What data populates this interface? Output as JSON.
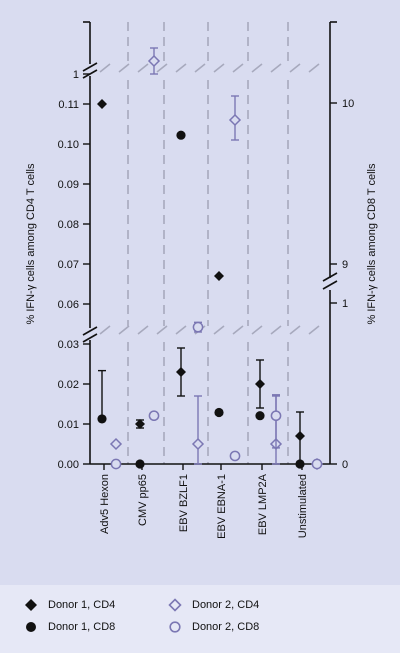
{
  "chart_data": {
    "type": "scatter",
    "categories": [
      "Adv5 Hexon",
      "CMV pp65",
      "EBV BZLF1",
      "EBV EBNA-1",
      "EBV LMP2A",
      "Unstimulated"
    ],
    "ylabel_left": "% IFN-γ cells among CD4 T cells",
    "ylabel_right": "% IFN-γ cells among CD8 T cells",
    "left_axis": {
      "segments": [
        {
          "range": [
            0,
            0.03
          ],
          "ticks": [
            0.0,
            0.01,
            0.02,
            0.03
          ],
          "tick_labels": [
            "0.00",
            "0.01",
            "0.02",
            "0.03"
          ]
        },
        {
          "range": [
            0.055,
            0.115
          ],
          "ticks": [
            0.06,
            0.07,
            0.08,
            0.09,
            0.1,
            0.11
          ],
          "tick_labels": [
            "0.06",
            "0.07",
            "0.08",
            "0.09",
            "0.10",
            "0.11"
          ]
        },
        {
          "range": [
            0.9,
            1.2
          ],
          "ticks": [
            1
          ],
          "tick_labels": [
            "1"
          ]
        }
      ]
    },
    "right_axis": {
      "segments": [
        {
          "range": [
            0,
            1
          ],
          "ticks": [
            0,
            1
          ],
          "tick_labels": [
            "0",
            "1"
          ]
        },
        {
          "range": [
            8.5,
            11
          ],
          "ticks": [
            9,
            10
          ],
          "tick_labels": [
            "9",
            "10"
          ]
        }
      ]
    },
    "series": [
      {
        "name": "Donor 1, CD4",
        "marker": "diamond-filled",
        "axis": "left",
        "values": [
          0.11,
          0.01,
          0.023,
          0.067,
          0.02,
          0.007
        ],
        "err_low": [
          null,
          0.009,
          0.017,
          null,
          0.014,
          0.0
        ],
        "err_high": [
          null,
          0.011,
          0.029,
          null,
          0.026,
          0.013
        ]
      },
      {
        "name": "Donor 1, CD8",
        "marker": "circle-filled",
        "axis": "right",
        "values": [
          0.28,
          0.0,
          9.8,
          0.32,
          0.3,
          0.0
        ],
        "err_low": [
          null,
          null,
          null,
          null,
          null,
          null
        ],
        "err_high": [
          0.58,
          null,
          null,
          null,
          null,
          null
        ]
      },
      {
        "name": "Donor 2, CD4",
        "marker": "diamond-open",
        "axis": "left",
        "values": [
          0.005,
          1.05,
          0.005,
          0.106,
          0.005,
          0.0
        ],
        "err_low": [
          null,
          1.0,
          0.0,
          0.101,
          0.0,
          null
        ],
        "err_high": [
          null,
          1.1,
          0.017,
          0.112,
          0.017,
          null
        ]
      },
      {
        "name": "Donor 2, CD8",
        "marker": "circle-open",
        "axis": "right",
        "values": [
          0.0,
          0.3,
          0.85,
          0.05,
          0.3,
          0.0
        ],
        "err_low": [
          null,
          null,
          0.82,
          null,
          0.1,
          null
        ],
        "err_high": [
          null,
          null,
          0.88,
          null,
          0.43,
          null
        ]
      }
    ],
    "legend": [
      {
        "label": "Donor 1, CD4",
        "marker": "diamond-filled"
      },
      {
        "label": "Donor 2, CD4",
        "marker": "diamond-open"
      },
      {
        "label": "Donor 1, CD8",
        "marker": "circle-filled"
      },
      {
        "label": "Donor 2, CD8",
        "marker": "circle-open"
      }
    ],
    "legend_placement": "bottom",
    "colors": {
      "donor1": "#111111",
      "donor2": "#7b77b3",
      "background": "#d9dcf0",
      "legend_bg": "#e6e8f6",
      "dash": "#a7a9bd"
    }
  }
}
